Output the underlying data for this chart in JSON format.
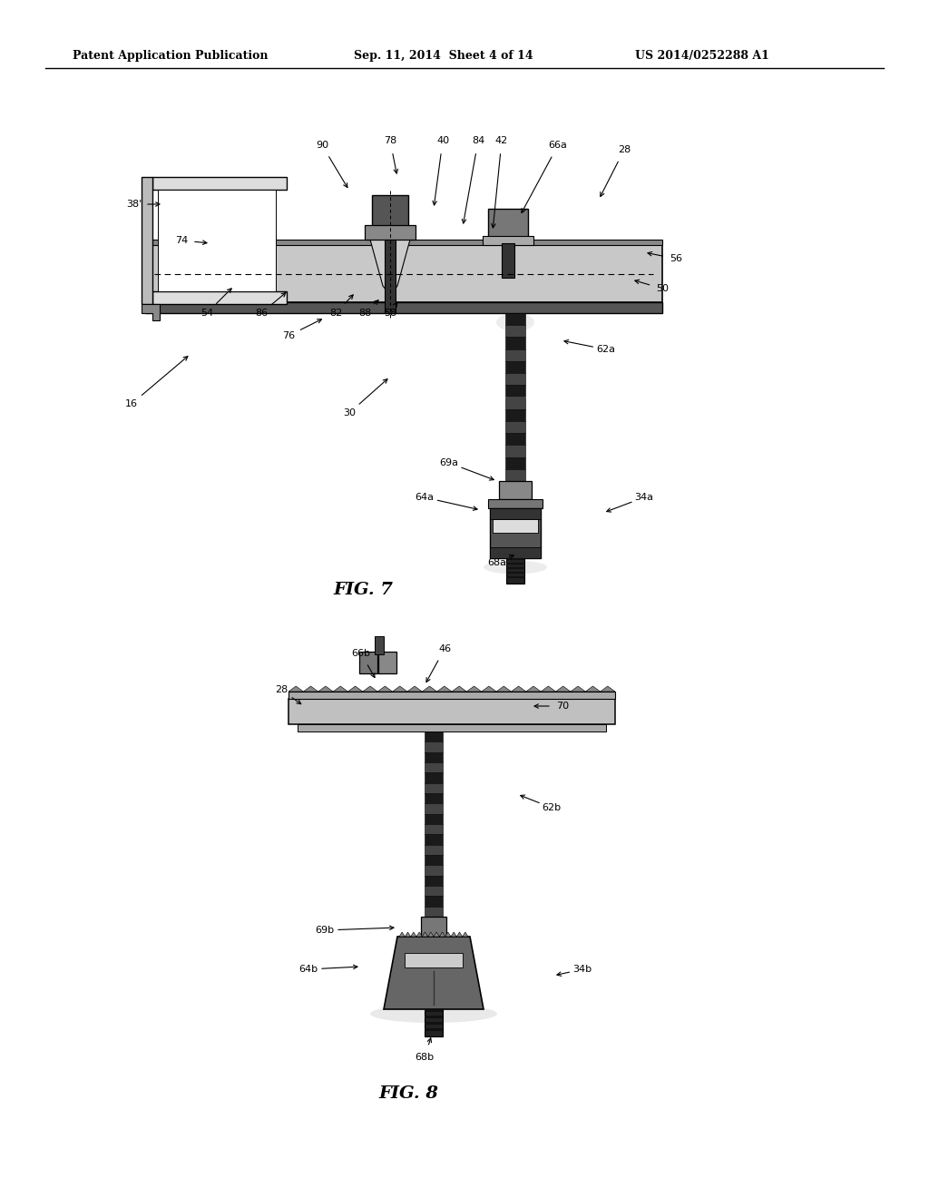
{
  "bg_color": "#ffffff",
  "header_text": "Patent Application Publication",
  "header_date": "Sep. 11, 2014  Sheet 4 of 14",
  "header_patent": "US 2014/0252288 A1",
  "fig7_label": "FIG. 7",
  "fig8_label": "FIG. 8"
}
